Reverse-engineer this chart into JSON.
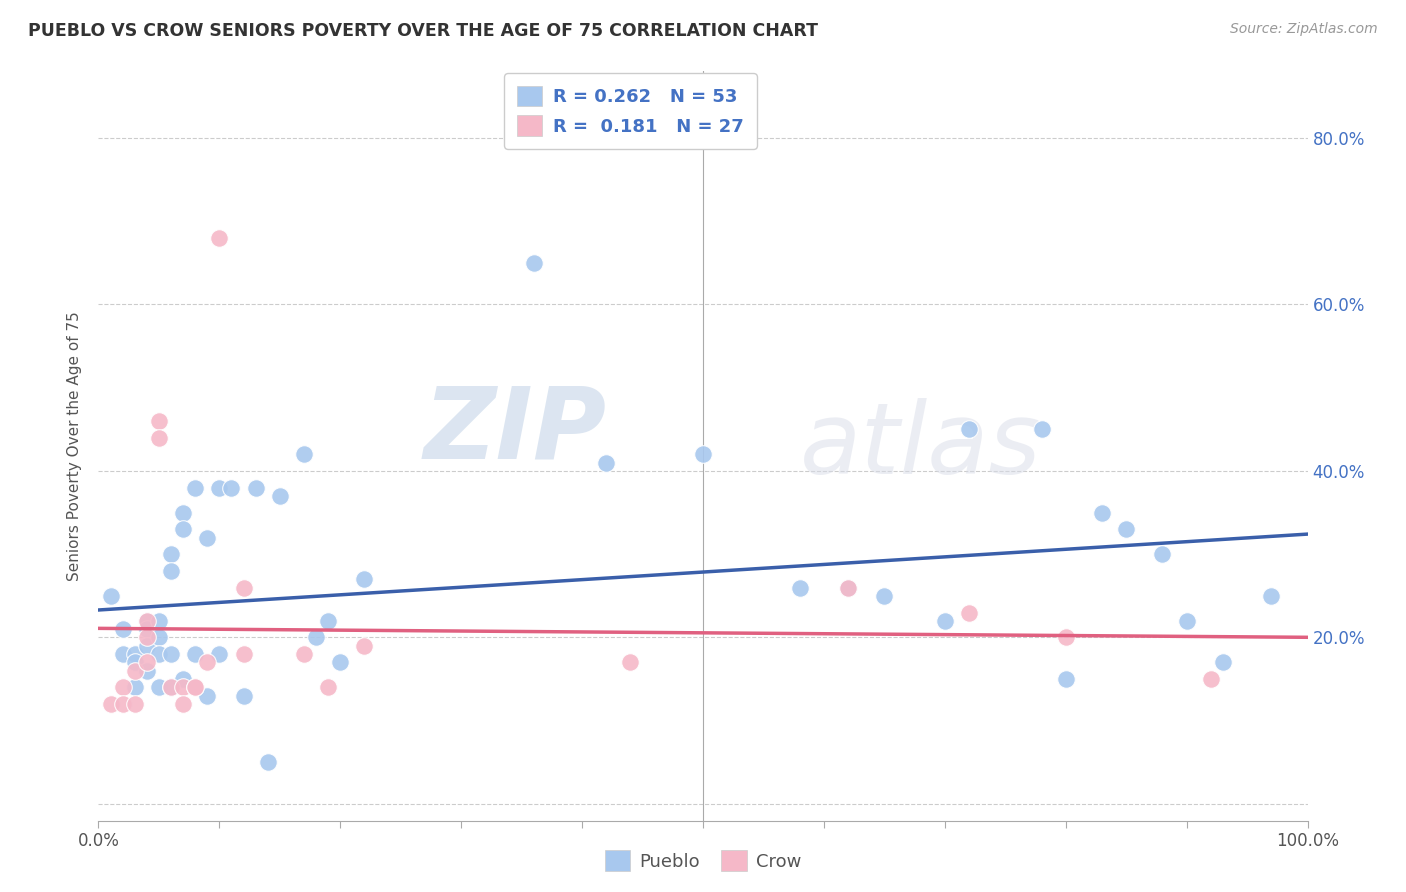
{
  "title": "PUEBLO VS CROW SENIORS POVERTY OVER THE AGE OF 75 CORRELATION CHART",
  "source": "Source: ZipAtlas.com",
  "ylabel": "Seniors Poverty Over the Age of 75",
  "xlim": [
    0.0,
    1.0
  ],
  "ylim": [
    -0.02,
    0.88
  ],
  "pueblo_color": "#a8c8ee",
  "crow_color": "#f5b8c8",
  "pueblo_line_color": "#3a5faa",
  "crow_line_color": "#e06080",
  "pueblo_R": 0.262,
  "pueblo_N": 53,
  "crow_R": 0.181,
  "crow_N": 27,
  "legend_text_color": "#4472C4",
  "watermark_zip": "ZIP",
  "watermark_atlas": "atlas",
  "background_color": "#ffffff",
  "grid_color": "#cccccc",
  "ytick_right_vals": [
    0.2,
    0.4,
    0.6,
    0.8
  ],
  "ytick_right_labels": [
    "20.0%",
    "40.0%",
    "60.0%",
    "80.0%"
  ],
  "xtick_vals": [
    0.0,
    0.5,
    1.0
  ],
  "xtick_labels": [
    "0.0%",
    "",
    "100.0%"
  ],
  "pueblo_x": [
    0.01,
    0.02,
    0.02,
    0.03,
    0.03,
    0.03,
    0.04,
    0.04,
    0.04,
    0.04,
    0.05,
    0.05,
    0.05,
    0.05,
    0.06,
    0.06,
    0.06,
    0.06,
    0.07,
    0.07,
    0.07,
    0.08,
    0.08,
    0.09,
    0.09,
    0.1,
    0.1,
    0.11,
    0.12,
    0.13,
    0.14,
    0.15,
    0.17,
    0.18,
    0.19,
    0.2,
    0.22,
    0.36,
    0.42,
    0.5,
    0.58,
    0.62,
    0.65,
    0.7,
    0.72,
    0.78,
    0.8,
    0.83,
    0.85,
    0.88,
    0.9,
    0.93,
    0.97
  ],
  "pueblo_y": [
    0.25,
    0.21,
    0.18,
    0.18,
    0.17,
    0.14,
    0.22,
    0.21,
    0.19,
    0.16,
    0.22,
    0.2,
    0.18,
    0.14,
    0.3,
    0.28,
    0.18,
    0.14,
    0.35,
    0.33,
    0.15,
    0.38,
    0.18,
    0.13,
    0.32,
    0.38,
    0.18,
    0.38,
    0.13,
    0.38,
    0.05,
    0.37,
    0.42,
    0.2,
    0.22,
    0.17,
    0.27,
    0.65,
    0.41,
    0.42,
    0.26,
    0.26,
    0.25,
    0.22,
    0.45,
    0.45,
    0.15,
    0.35,
    0.33,
    0.3,
    0.22,
    0.17,
    0.25
  ],
  "crow_x": [
    0.01,
    0.02,
    0.02,
    0.03,
    0.03,
    0.04,
    0.04,
    0.04,
    0.05,
    0.05,
    0.06,
    0.07,
    0.07,
    0.08,
    0.08,
    0.09,
    0.1,
    0.12,
    0.12,
    0.17,
    0.19,
    0.22,
    0.44,
    0.62,
    0.72,
    0.8,
    0.92
  ],
  "crow_y": [
    0.12,
    0.14,
    0.12,
    0.16,
    0.12,
    0.22,
    0.2,
    0.17,
    0.46,
    0.44,
    0.14,
    0.14,
    0.12,
    0.14,
    0.14,
    0.17,
    0.68,
    0.26,
    0.18,
    0.18,
    0.14,
    0.19,
    0.17,
    0.26,
    0.23,
    0.2,
    0.15
  ]
}
